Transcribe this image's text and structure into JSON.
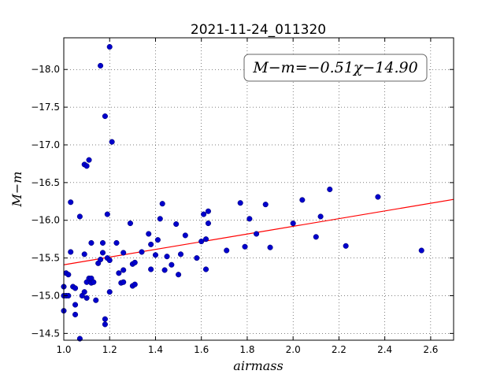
{
  "chart_data": {
    "type": "scatter",
    "title": "2021-11-24_011320",
    "xlabel": "airmass",
    "ylabel": "M−m",
    "xlim": [
      1.0,
      2.7
    ],
    "ylim": [
      -18.42,
      -14.41
    ],
    "y_inverted": true,
    "grid": true,
    "x_ticks": [
      1.0,
      1.2,
      1.4,
      1.6,
      1.8,
      2.0,
      2.2,
      2.4,
      2.6
    ],
    "x_tick_labels": [
      "1.0",
      "1.2",
      "1.4",
      "1.6",
      "1.8",
      "2.0",
      "2.2",
      "2.4",
      "2.6"
    ],
    "y_ticks": [
      -14.5,
      -15.0,
      -15.5,
      -16.0,
      -16.5,
      -17.0,
      -17.5,
      -18.0
    ],
    "y_tick_labels": [
      "−14.5",
      "−15.0",
      "−15.5",
      "−16.0",
      "−16.5",
      "−17.0",
      "−17.5",
      "−18.0"
    ],
    "annotation": "M−m=−0.51χ−14.90",
    "colors": {
      "points": "#0000cc",
      "fit": "#ff0000"
    },
    "fit_line": {
      "slope": -0.51,
      "intercept": -14.9
    },
    "points": [
      {
        "x": 1.0,
        "y": -14.8
      },
      {
        "x": 1.0,
        "y": -15.0
      },
      {
        "x": 1.0,
        "y": -15.12
      },
      {
        "x": 1.01,
        "y": -15.0
      },
      {
        "x": 1.01,
        "y": -15.3
      },
      {
        "x": 1.02,
        "y": -15.0
      },
      {
        "x": 1.02,
        "y": -15.28
      },
      {
        "x": 1.03,
        "y": -15.58
      },
      {
        "x": 1.03,
        "y": -16.24
      },
      {
        "x": 1.04,
        "y": -15.12
      },
      {
        "x": 1.05,
        "y": -14.75
      },
      {
        "x": 1.05,
        "y": -14.88
      },
      {
        "x": 1.05,
        "y": -15.1
      },
      {
        "x": 1.07,
        "y": -16.05
      },
      {
        "x": 1.07,
        "y": -14.43
      },
      {
        "x": 1.08,
        "y": -15.0
      },
      {
        "x": 1.09,
        "y": -15.05
      },
      {
        "x": 1.09,
        "y": -15.55
      },
      {
        "x": 1.09,
        "y": -16.74
      },
      {
        "x": 1.1,
        "y": -14.97
      },
      {
        "x": 1.1,
        "y": -15.18
      },
      {
        "x": 1.1,
        "y": -16.72
      },
      {
        "x": 1.11,
        "y": -15.23
      },
      {
        "x": 1.11,
        "y": -16.8
      },
      {
        "x": 1.12,
        "y": -15.17
      },
      {
        "x": 1.12,
        "y": -15.23
      },
      {
        "x": 1.12,
        "y": -15.7
      },
      {
        "x": 1.13,
        "y": -15.18
      },
      {
        "x": 1.14,
        "y": -14.94
      },
      {
        "x": 1.15,
        "y": -15.43
      },
      {
        "x": 1.16,
        "y": -18.05
      },
      {
        "x": 1.16,
        "y": -15.48
      },
      {
        "x": 1.17,
        "y": -15.57
      },
      {
        "x": 1.17,
        "y": -15.7
      },
      {
        "x": 1.18,
        "y": -17.38
      },
      {
        "x": 1.18,
        "y": -14.62
      },
      {
        "x": 1.18,
        "y": -14.69
      },
      {
        "x": 1.19,
        "y": -16.08
      },
      {
        "x": 1.19,
        "y": -15.5
      },
      {
        "x": 1.2,
        "y": -18.3
      },
      {
        "x": 1.2,
        "y": -15.47
      },
      {
        "x": 1.2,
        "y": -15.05
      },
      {
        "x": 1.21,
        "y": -17.04
      },
      {
        "x": 1.23,
        "y": -15.7
      },
      {
        "x": 1.24,
        "y": -15.3
      },
      {
        "x": 1.25,
        "y": -15.17
      },
      {
        "x": 1.26,
        "y": -15.18
      },
      {
        "x": 1.26,
        "y": -15.34
      },
      {
        "x": 1.26,
        "y": -15.57
      },
      {
        "x": 1.29,
        "y": -15.96
      },
      {
        "x": 1.3,
        "y": -15.13
      },
      {
        "x": 1.3,
        "y": -15.42
      },
      {
        "x": 1.31,
        "y": -15.15
      },
      {
        "x": 1.31,
        "y": -15.44
      },
      {
        "x": 1.34,
        "y": -15.58
      },
      {
        "x": 1.37,
        "y": -15.82
      },
      {
        "x": 1.38,
        "y": -15.35
      },
      {
        "x": 1.38,
        "y": -15.68
      },
      {
        "x": 1.4,
        "y": -15.54
      },
      {
        "x": 1.41,
        "y": -15.74
      },
      {
        "x": 1.42,
        "y": -16.02
      },
      {
        "x": 1.43,
        "y": -16.22
      },
      {
        "x": 1.44,
        "y": -15.34
      },
      {
        "x": 1.45,
        "y": -15.52
      },
      {
        "x": 1.47,
        "y": -15.41
      },
      {
        "x": 1.49,
        "y": -15.95
      },
      {
        "x": 1.5,
        "y": -15.28
      },
      {
        "x": 1.51,
        "y": -15.55
      },
      {
        "x": 1.53,
        "y": -15.8
      },
      {
        "x": 1.58,
        "y": -15.5
      },
      {
        "x": 1.6,
        "y": -15.72
      },
      {
        "x": 1.61,
        "y": -16.08
      },
      {
        "x": 1.62,
        "y": -15.75
      },
      {
        "x": 1.62,
        "y": -15.35
      },
      {
        "x": 1.63,
        "y": -15.96
      },
      {
        "x": 1.63,
        "y": -16.12
      },
      {
        "x": 1.71,
        "y": -15.6
      },
      {
        "x": 1.77,
        "y": -16.23
      },
      {
        "x": 1.79,
        "y": -15.65
      },
      {
        "x": 1.81,
        "y": -16.02
      },
      {
        "x": 1.84,
        "y": -15.82
      },
      {
        "x": 1.88,
        "y": -16.21
      },
      {
        "x": 1.9,
        "y": -15.64
      },
      {
        "x": 2.0,
        "y": -15.96
      },
      {
        "x": 2.04,
        "y": -16.27
      },
      {
        "x": 2.1,
        "y": -15.78
      },
      {
        "x": 2.12,
        "y": -16.05
      },
      {
        "x": 2.16,
        "y": -16.41
      },
      {
        "x": 2.23,
        "y": -15.66
      },
      {
        "x": 2.37,
        "y": -16.31
      },
      {
        "x": 2.56,
        "y": -15.6
      }
    ]
  }
}
